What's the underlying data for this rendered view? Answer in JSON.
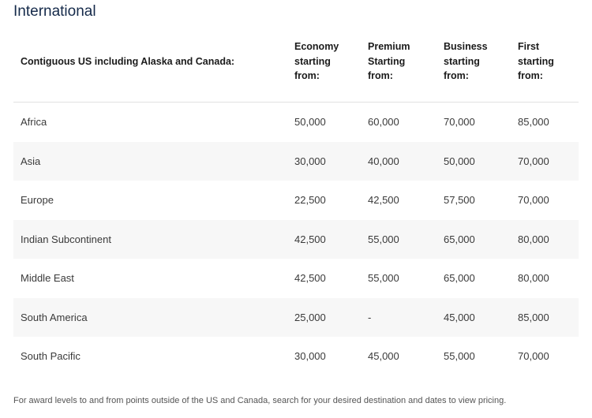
{
  "title": "International",
  "table": {
    "header": [
      "Contiguous US including Alaska and Canada:",
      "Economy starting from:",
      "Premium Starting from:",
      "Business starting from:",
      "First starting from:"
    ],
    "rows": [
      [
        "Africa",
        "50,000",
        "60,000",
        "70,000",
        "85,000"
      ],
      [
        "Asia",
        "30,000",
        "40,000",
        "50,000",
        "70,000"
      ],
      [
        "Europe",
        "22,500",
        "42,500",
        "57,500",
        "70,000"
      ],
      [
        "Indian Subcontinent",
        "42,500",
        "55,000",
        "65,000",
        "80,000"
      ],
      [
        "Middle East",
        "42,500",
        "55,000",
        "65,000",
        "80,000"
      ],
      [
        "South America",
        "25,000",
        "-",
        "45,000",
        "85,000"
      ],
      [
        "South Pacific",
        "30,000",
        "45,000",
        "55,000",
        "70,000"
      ]
    ]
  },
  "footnote": "For award levels to and from points outside of the US and Canada, search for your desired destination and dates to view pricing."
}
